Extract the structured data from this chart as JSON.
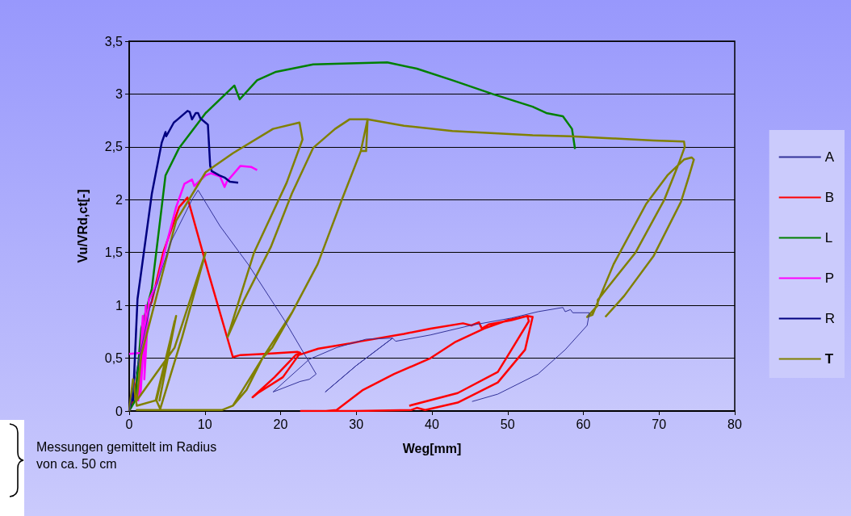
{
  "chart_data": {
    "type": "line",
    "xlabel": "Weg[mm]",
    "ylabel": "Vu/VRd,ct[-]",
    "xlim": [
      0,
      80
    ],
    "xticks": [
      0,
      10,
      20,
      30,
      40,
      50,
      60,
      70,
      80
    ],
    "ylim": [
      0,
      3.5
    ],
    "yticks": [
      0,
      {
        "value": 0.5,
        "label": "0,5"
      },
      1,
      {
        "value": 1.5,
        "label": "1,5"
      },
      2,
      {
        "value": 2.5,
        "label": "2,5"
      },
      3,
      {
        "value": 3.5,
        "label": "3,5"
      }
    ],
    "grid": "y",
    "legend": "right",
    "marker": "none",
    "line_style": "solid",
    "annotations": [
      "Messungen gemittelt im Radius von ca. 50 cm"
    ],
    "series": [
      {
        "name": "A",
        "color": "#333399",
        "x": [
          0,
          1,
          3,
          5.5,
          8.3,
          9.1,
          12,
          15.7,
          20.5,
          24.7,
          23.8,
          22.6,
          19,
          23.8,
          27.4,
          31.3,
          34.8,
          30,
          25.9,
          30,
          34.8,
          35.2,
          39.8,
          45.1,
          50.5,
          54,
          57.3,
          57.6,
          58.3,
          58.6,
          59.2,
          60.8,
          60.5,
          57.6,
          54,
          48.7,
          45.3
        ],
        "values": [
          0,
          0.4,
          1.06,
          1.6,
          2,
          2.09,
          1.75,
          1.39,
          0.86,
          0.35,
          0.3,
          0.28,
          0.18,
          0.49,
          0.6,
          0.68,
          0.69,
          0.43,
          0.18,
          0.43,
          0.69,
          0.66,
          0.72,
          0.81,
          0.88,
          0.94,
          0.98,
          0.94,
          0.96,
          0.93,
          0.93,
          0.93,
          0.81,
          0.58,
          0.35,
          0.16,
          0.09
        ]
      },
      {
        "name": "B",
        "color": "#ff0000",
        "x": [
          0,
          0.5,
          1.5,
          2.6,
          3,
          4.5,
          6.6,
          7.7,
          10.5,
          13.7,
          14.7,
          17.9,
          22.2,
          22.6,
          22,
          19.2,
          16.3,
          17,
          20.3,
          22.4,
          25,
          29.2,
          30.6,
          36.3,
          39.8,
          44.1,
          45.2,
          46.2,
          46.6,
          47.5,
          50.5,
          52.6,
          53.3,
          52.3,
          48.7,
          43.4,
          39.1,
          38,
          37.3,
          30,
          22.7,
          26,
          27.4,
          30.9,
          35,
          39.8,
          43,
          46.9,
          50,
          52.6,
          52.8,
          50.5,
          48.7,
          43.4,
          37
        ],
        "values": [
          0,
          0.1,
          0.5,
          0.97,
          1.04,
          1.5,
          1.93,
          2.02,
          1.3,
          0.51,
          0.53,
          0.54,
          0.56,
          0.55,
          0.53,
          0.32,
          0.13,
          0.17,
          0.32,
          0.53,
          0.59,
          0.64,
          0.66,
          0.73,
          0.78,
          0.83,
          0.81,
          0.84,
          0.78,
          0.82,
          0.86,
          0.9,
          0.89,
          0.58,
          0.27,
          0.08,
          0.01,
          0.03,
          0.01,
          0,
          0,
          0,
          0.01,
          0.2,
          0.35,
          0.5,
          0.65,
          0.78,
          0.86,
          0.9,
          0.85,
          0.58,
          0.37,
          0.17,
          0.05
        ]
      },
      {
        "name": "L",
        "color": "#008000",
        "x": [
          0,
          0.8,
          1.6,
          3,
          4.8,
          6.6,
          8.3,
          10.1,
          13.9,
          14.6,
          16.9,
          19.4,
          24.3,
          29.1,
          34.1,
          38,
          42.7,
          48,
          53.3,
          55.1,
          57.3,
          58.5,
          58.9
        ],
        "values": [
          0,
          0.1,
          0.78,
          1.16,
          2.23,
          2.49,
          2.65,
          2.82,
          3.08,
          2.95,
          3.13,
          3.21,
          3.28,
          3.29,
          3.3,
          3.24,
          3.13,
          3,
          2.88,
          2.82,
          2.79,
          2.67,
          2.48
        ]
      },
      {
        "name": "P",
        "color": "#ff00ff",
        "x": [
          0,
          1.6,
          1.2,
          1.8,
          1.5,
          2.2,
          2,
          2.6,
          3.7,
          5,
          6.2,
          7.3,
          8.3,
          8.6,
          10.1,
          10.8,
          12,
          12.6,
          12.9,
          14.7,
          16.1,
          16.9
        ],
        "values": [
          0.54,
          0.55,
          0.1,
          0.9,
          0.15,
          1,
          0.3,
          1.05,
          1.21,
          1.6,
          1.93,
          2.15,
          2.19,
          2.13,
          2.23,
          2.25,
          2.22,
          2.12,
          2.17,
          2.32,
          2.31,
          2.28
        ]
      },
      {
        "name": "R",
        "color": "#000080",
        "x": [
          0,
          0.3,
          0.6,
          0.5,
          1.1,
          3,
          4.3,
          4.8,
          4.9,
          5.9,
          6.4,
          7.7,
          8,
          8.3,
          8.8,
          9.1,
          9.4,
          10.4,
          10.7,
          10.9,
          11.9,
          12.6,
          13.3,
          14.4
        ],
        "values": [
          0,
          0.1,
          0.3,
          0.1,
          1.06,
          2.06,
          2.54,
          2.64,
          2.6,
          2.73,
          2.76,
          2.84,
          2.83,
          2.76,
          2.82,
          2.82,
          2.77,
          2.71,
          2.32,
          2.27,
          2.23,
          2.21,
          2.17,
          2.16
        ]
      },
      {
        "name": "T",
        "color": "#808000",
        "x": [
          0,
          0.5,
          1,
          3.5,
          6.2,
          4,
          6,
          3.6,
          4.1,
          7,
          10.1,
          6,
          1,
          1.6,
          6.2,
          10.1,
          13.7,
          19,
          22.5,
          22.9,
          20.8,
          16.5,
          13,
          15.1,
          18.7,
          21.5,
          24.3,
          27.2,
          29.1,
          31.5,
          31.3,
          30.6,
          28.1,
          24.9,
          21.5,
          18.9,
          17.6,
          15.5,
          13.7,
          12.3,
          1,
          12.3,
          13.7,
          17.6,
          21.5,
          24.9,
          28.1,
          30.6,
          31.5,
          36.3,
          42.7,
          53.3,
          58.3,
          64,
          69.3,
          73.3,
          73.4,
          72.7,
          70.7,
          66.9,
          62.9,
          61.9,
          61.9,
          60.5,
          61.2,
          64,
          68.3,
          71.1,
          73.3,
          74.3,
          74.6,
          73.9,
          72.9,
          69.3,
          65.4,
          62.9
        ],
        "values": [
          0,
          0.3,
          0.05,
          0.1,
          0.9,
          0.1,
          0.85,
          0.1,
          0.02,
          0.7,
          1.5,
          0.6,
          0.1,
          0.53,
          1.8,
          2.26,
          2.44,
          2.67,
          2.73,
          2.57,
          2.16,
          1.5,
          0.7,
          1.04,
          1.55,
          2.06,
          2.49,
          2.67,
          2.76,
          2.76,
          2.46,
          2.46,
          2,
          1.39,
          0.93,
          0.6,
          0.5,
          0.2,
          0.05,
          0.01,
          0.01,
          0.01,
          0.05,
          0.5,
          0.93,
          1.39,
          2,
          2.46,
          2.76,
          2.7,
          2.65,
          2.61,
          2.6,
          2.58,
          2.56,
          2.55,
          2.5,
          2.36,
          2,
          1.5,
          1.14,
          1.05,
          1,
          0.89,
          0.91,
          1.39,
          1.96,
          2.23,
          2.38,
          2.4,
          2.38,
          2.21,
          1.98,
          1.47,
          1.09,
          0.89
        ]
      }
    ]
  }
}
